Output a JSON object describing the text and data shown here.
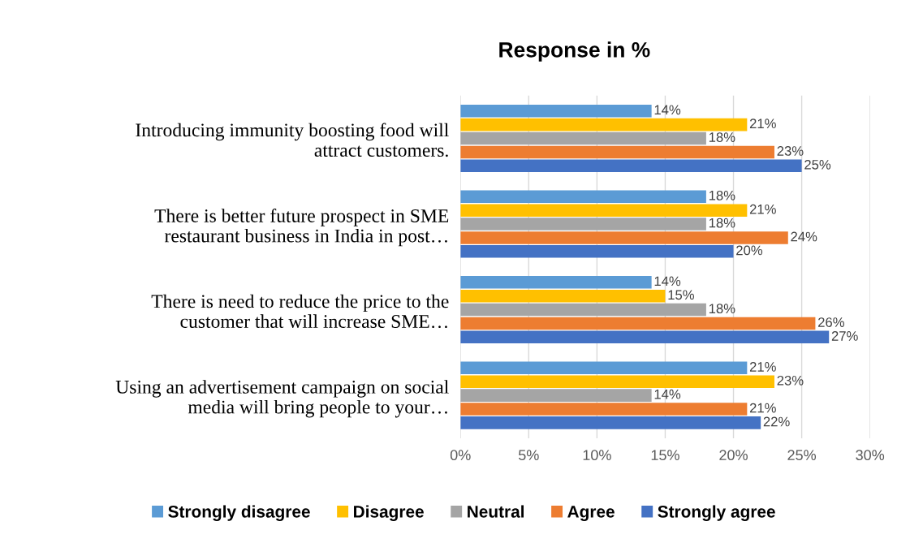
{
  "chart_data": {
    "type": "bar",
    "orientation": "horizontal",
    "title": "Response in %",
    "categories": [
      "Introducing immunity boosting food will\nattract customers.",
      "There is better future prospect in SME\nrestaurant business in India in post…",
      "There is need to reduce the price to the\ncustomer that will increase SME…",
      "Using an advertisement campaign on social\nmedia will bring people to your…"
    ],
    "series": [
      {
        "name": "Strongly disagree",
        "color": "#5b9bd5",
        "values": [
          14,
          18,
          14,
          21
        ],
        "value_labels": [
          "14%",
          "18%",
          "14%",
          "21%"
        ]
      },
      {
        "name": "Disagree",
        "color": "#ffc000",
        "values": [
          21,
          21,
          15,
          23
        ],
        "value_labels": [
          "21%",
          "21%",
          "15%",
          "23%"
        ]
      },
      {
        "name": "Neutral",
        "color": "#a5a5a5",
        "values": [
          18,
          18,
          18,
          14
        ],
        "value_labels": [
          "18%",
          "18%",
          "18%",
          "14%"
        ]
      },
      {
        "name": "Agree",
        "color": "#ed7d31",
        "values": [
          23,
          24,
          26,
          21
        ],
        "value_labels": [
          "23%",
          "24%",
          "26%",
          "21%"
        ]
      },
      {
        "name": "Strongly agree",
        "color": "#4472c4",
        "values": [
          25,
          20,
          27,
          22
        ],
        "value_labels": [
          "25%",
          "20%",
          "27%",
          "22%"
        ]
      }
    ],
    "xlim": [
      0,
      30
    ],
    "xticks": [
      {
        "value": 0,
        "label": "0%"
      },
      {
        "value": 5,
        "label": "5%"
      },
      {
        "value": 10,
        "label": "10%"
      },
      {
        "value": 15,
        "label": "15%"
      },
      {
        "value": 20,
        "label": "20%"
      },
      {
        "value": 25,
        "label": "25%"
      },
      {
        "value": 30,
        "label": "30%"
      }
    ],
    "grid": "x",
    "legend": "bottom"
  }
}
